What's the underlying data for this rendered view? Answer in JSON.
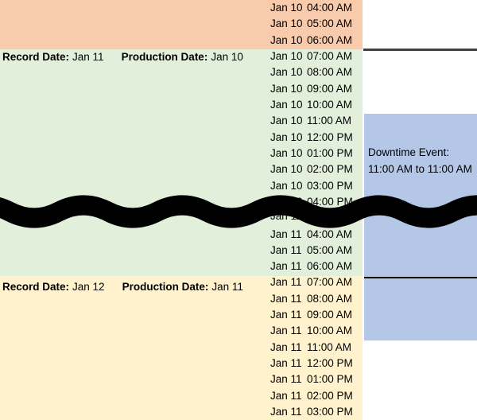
{
  "app": {
    "description": "Spreadsheet fragment showing hourly production records with downtime event annotation"
  },
  "colors": {
    "band_previous_day": "#F8CBAD",
    "band_jan10": "#E2EFDA",
    "band_jan11": "#FFF2CC",
    "downtime_blue": "#B4C7E7",
    "gridline": "#ECECEC",
    "divider_dark": "#3F3F3F",
    "divider_black": "#000000",
    "break_wave": "#000000",
    "text": "#000000"
  },
  "labels": {
    "record_date": "Record Date:",
    "production_date": "Production Date:"
  },
  "bands": [
    {
      "name": "previous-day-tail",
      "color": "#F8CBAD"
    },
    {
      "name": "production-day-jan10",
      "color": "#E2EFDA",
      "record_date": "Jan 11",
      "production_date": "Jan 10"
    },
    {
      "name": "production-day-jan11",
      "color": "#FFF2CC",
      "record_date": "Jan 12",
      "production_date": "Jan 11"
    }
  ],
  "downtime_event": {
    "line1": "Downtime Event:",
    "line2": "11:00 AM to 11:00 AM"
  },
  "break_marker": {
    "style": "wave",
    "meaning": "rows omitted",
    "color": "#000000"
  },
  "rows": [
    {
      "date": "Jan 10",
      "time": "04:00 AM",
      "band": "previous"
    },
    {
      "date": "Jan 10",
      "time": "05:00 AM",
      "band": "previous"
    },
    {
      "date": "Jan 10",
      "time": "06:00 AM",
      "band": "previous"
    },
    {
      "date": "Jan 10",
      "time": "07:00 AM",
      "band": "jan10"
    },
    {
      "date": "Jan 10",
      "time": "08:00 AM",
      "band": "jan10"
    },
    {
      "date": "Jan 10",
      "time": "09:00 AM",
      "band": "jan10"
    },
    {
      "date": "Jan 10",
      "time": "10:00 AM",
      "band": "jan10"
    },
    {
      "date": "Jan 10",
      "time": "11:00 AM",
      "band": "jan10"
    },
    {
      "date": "Jan 10",
      "time": "12:00 PM",
      "band": "jan10"
    },
    {
      "date": "Jan 10",
      "time": "01:00 PM",
      "band": "jan10"
    },
    {
      "date": "Jan 10",
      "time": "02:00 PM",
      "band": "jan10"
    },
    {
      "date": "Jan 10",
      "time": "03:00 PM",
      "band": "jan10"
    },
    {
      "date": "Jan 10",
      "time": "04:00 PM",
      "band": "jan10"
    },
    {
      "date": "Jan 11",
      "time": "03:00 AM",
      "band": "jan10",
      "partial": true
    },
    {
      "date": "Jan 11",
      "time": "04:00 AM",
      "band": "jan10"
    },
    {
      "date": "Jan 11",
      "time": "05:00 AM",
      "band": "jan10"
    },
    {
      "date": "Jan 11",
      "time": "06:00 AM",
      "band": "jan10"
    },
    {
      "date": "Jan 11",
      "time": "07:00 AM",
      "band": "jan11"
    },
    {
      "date": "Jan 11",
      "time": "08:00 AM",
      "band": "jan11"
    },
    {
      "date": "Jan 11",
      "time": "09:00 AM",
      "band": "jan11"
    },
    {
      "date": "Jan 11",
      "time": "10:00 AM",
      "band": "jan11"
    },
    {
      "date": "Jan 11",
      "time": "11:00 AM",
      "band": "jan11"
    },
    {
      "date": "Jan 11",
      "time": "12:00 PM",
      "band": "jan11"
    },
    {
      "date": "Jan 11",
      "time": "01:00 PM",
      "band": "jan11"
    },
    {
      "date": "Jan 11",
      "time": "02:00 PM",
      "band": "jan11"
    },
    {
      "date": "Jan 11",
      "time": "03:00 PM",
      "band": "jan11"
    }
  ]
}
